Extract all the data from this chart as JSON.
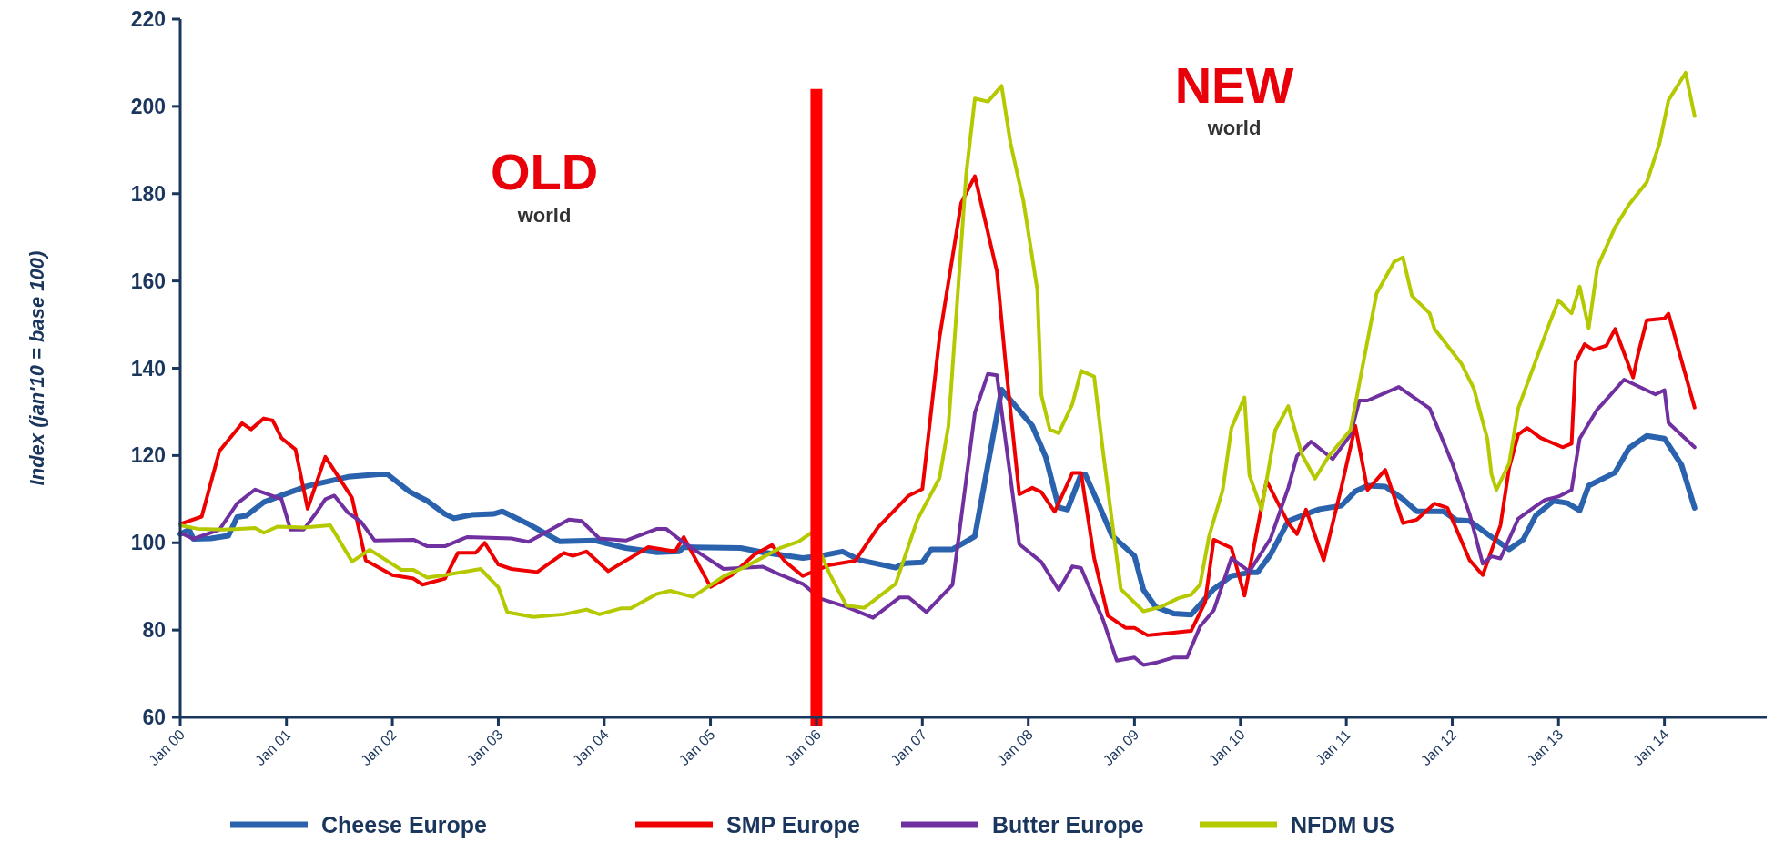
{
  "chart_data": {
    "type": "line",
    "ylabel": "Index (jan'10 = base 100)",
    "xlim": [
      "2000-01-01",
      "2015-01-01"
    ],
    "ylim": [
      60,
      220
    ],
    "yticks": [
      60,
      80,
      100,
      120,
      140,
      160,
      180,
      200,
      220
    ],
    "xticks": [
      {
        "value": "2000-01-01",
        "label": "Jan 00"
      },
      {
        "value": "2001-01-01",
        "label": "Jan 01"
      },
      {
        "value": "2002-01-01",
        "label": "Jan 02"
      },
      {
        "value": "2003-01-01",
        "label": "Jan 03"
      },
      {
        "value": "2004-01-01",
        "label": "Jan 04"
      },
      {
        "value": "2005-01-01",
        "label": "Jan 05"
      },
      {
        "value": "2006-01-01",
        "label": "Jan 06"
      },
      {
        "value": "2007-01-01",
        "label": "Jan 07"
      },
      {
        "value": "2008-01-01",
        "label": "Jan 08"
      },
      {
        "value": "2009-01-01",
        "label": "Jan 09"
      },
      {
        "value": "2010-01-01",
        "label": "Jan 10"
      },
      {
        "value": "2011-01-01",
        "label": "Jan 11"
      },
      {
        "value": "2012-01-01",
        "label": "Jan 12"
      },
      {
        "value": "2013-01-01",
        "label": "Jan 13"
      },
      {
        "value": "2014-01-01",
        "label": "Jan 14"
      }
    ],
    "grid": false,
    "legend": "bottom",
    "marker": "none",
    "line_style": "solid",
    "ref_lines": [
      {
        "axis": "x",
        "value": "2006-01-01",
        "color": "#ff0000"
      }
    ],
    "annotations": [
      "OLD",
      "world",
      "NEW",
      "world"
    ],
    "series": [
      {
        "name": "Cheese Europe",
        "color": "#2a62ae",
        "x": [
          "2000-01-01",
          "2000-02-01",
          "2000-02-15",
          "2000-04-15",
          "2000-06-15",
          "2000-07-15",
          "2000-08-15",
          "2000-10-15",
          "2001-01-01",
          "2001-03-15",
          "2001-08-01",
          "2001-11-15",
          "2001-12-15",
          "2002-03-01",
          "2002-05-01",
          "2002-07-01",
          "2002-08-01",
          "2002-10-01",
          "2002-12-15",
          "2003-01-15",
          "2003-04-15",
          "2003-08-01",
          "2003-12-01",
          "2004-03-15",
          "2004-07-01",
          "2004-09-15",
          "2004-10-01",
          "2005-04-15",
          "2005-07-01",
          "2005-11-15",
          "2006-01-15",
          "2006-04-01",
          "2006-06-01",
          "2006-10-01",
          "2006-11-01",
          "2007-01-01",
          "2007-02-01",
          "2007-04-15",
          "2007-06-01",
          "2007-07-01",
          "2007-10-01",
          "2008-01-15",
          "2008-03-01",
          "2008-04-15",
          "2008-05-15",
          "2008-07-01",
          "2008-07-15",
          "2008-09-01",
          "2008-10-15",
          "2009-01-01",
          "2009-02-01",
          "2009-03-15",
          "2009-05-15",
          "2009-07-15",
          "2009-10-01",
          "2009-12-01",
          "2010-02-01",
          "2010-03-01",
          "2010-04-15",
          "2010-06-15",
          "2010-09-01",
          "2010-10-01",
          "2010-12-15",
          "2011-02-01",
          "2011-03-15",
          "2011-05-15",
          "2011-07-15",
          "2011-09-01",
          "2011-12-01",
          "2012-01-15",
          "2012-03-01",
          "2012-05-01",
          "2012-07-15",
          "2012-09-01",
          "2012-10-15",
          "2012-12-15",
          "2013-02-01",
          "2013-03-15",
          "2013-04-15",
          "2013-07-15",
          "2013-09-01",
          "2013-11-01",
          "2014-01-01",
          "2014-03-01",
          "2014-04-15"
        ],
        "values": [
          102,
          103,
          100.9,
          101,
          101.6,
          105.9,
          106.2,
          109.3,
          111.3,
          113,
          115.1,
          115.7,
          115.7,
          111.7,
          109.6,
          106.6,
          105.6,
          106.4,
          106.6,
          107.2,
          104.3,
          100.3,
          100.5,
          98.8,
          97.8,
          98,
          99,
          98.8,
          97.8,
          96.5,
          97,
          98,
          96,
          94.3,
          95.3,
          95.5,
          98.5,
          98.5,
          100.3,
          101.5,
          135.1,
          126.8,
          119.7,
          108.1,
          107.6,
          115.7,
          115.7,
          108.6,
          101.7,
          97,
          89.2,
          85.3,
          83.8,
          83.5,
          89.4,
          92.4,
          93.2,
          93.2,
          97.3,
          105,
          107,
          107.7,
          108.5,
          111.8,
          113.1,
          112.9,
          110,
          107.2,
          107.2,
          105.2,
          105,
          102,
          98.5,
          100.7,
          106.3,
          109.6,
          109.1,
          107.4,
          113.1,
          116.1,
          121.7,
          124.5,
          123.9,
          117.8,
          108
        ]
      },
      {
        "name": "SMP Europe",
        "color": "#ee0000",
        "x": [
          "2000-01-01",
          "2000-03-15",
          "2000-05-15",
          "2000-08-01",
          "2000-09-01",
          "2000-10-15",
          "2000-11-15",
          "2000-12-15",
          "2001-02-01",
          "2001-03-15",
          "2001-05-15",
          "2001-08-15",
          "2001-10-01",
          "2002-01-01",
          "2002-03-15",
          "2002-04-15",
          "2002-07-01",
          "2002-08-15",
          "2002-10-15",
          "2002-11-15",
          "2003-01-01",
          "2003-02-15",
          "2003-05-15",
          "2003-08-15",
          "2003-09-15",
          "2003-11-01",
          "2004-01-15",
          "2004-06-01",
          "2004-09-01",
          "2004-10-01",
          "2005-01-01",
          "2005-03-15",
          "2005-06-01",
          "2005-08-01",
          "2005-09-15",
          "2005-11-15",
          "2006-02-15",
          "2006-05-15",
          "2006-08-01",
          "2006-11-15",
          "2007-01-01",
          "2007-03-01",
          "2007-05-15",
          "2007-07-01",
          "2007-09-15",
          "2007-10-15",
          "2007-12-01",
          "2008-01-15",
          "2008-02-15",
          "2008-04-01",
          "2008-06-01",
          "2008-07-01",
          "2008-08-15",
          "2008-10-01",
          "2008-12-01",
          "2009-01-01",
          "2009-02-15",
          "2009-07-15",
          "2009-09-01",
          "2009-10-01",
          "2009-12-01",
          "2010-01-15",
          "2010-04-01",
          "2010-06-15",
          "2010-07-15",
          "2010-08-15",
          "2010-10-15",
          "2010-12-15",
          "2011-02-01",
          "2011-03-15",
          "2011-05-15",
          "2011-07-15",
          "2011-09-01",
          "2011-11-01",
          "2011-12-15",
          "2012-03-01",
          "2012-04-15",
          "2012-06-15",
          "2012-07-15",
          "2012-08-15",
          "2012-09-15",
          "2012-11-01",
          "2013-01-15",
          "2013-02-15",
          "2013-03-01",
          "2013-04-01",
          "2013-05-01",
          "2013-06-15",
          "2013-07-15",
          "2013-09-15",
          "2013-10-01",
          "2013-11-01",
          "2014-01-01",
          "2014-01-15",
          "2014-04-15"
        ],
        "values": [
          104.3,
          106,
          121,
          127.4,
          126,
          128.5,
          128,
          124,
          121.4,
          107.8,
          119.7,
          110.3,
          96,
          92.6,
          91.8,
          90.4,
          91.8,
          97.7,
          97.7,
          100,
          95,
          94,
          93.3,
          97.7,
          97,
          98,
          93.5,
          99,
          98,
          101.3,
          89.9,
          92.6,
          97.3,
          99.5,
          95.7,
          92.4,
          94.9,
          95.9,
          103.5,
          110.8,
          112.3,
          147,
          177.9,
          184,
          162.2,
          141,
          111.1,
          112.6,
          111.6,
          107.1,
          116,
          116,
          96.5,
          83.3,
          80.5,
          80.5,
          78.8,
          79.8,
          86.3,
          100.7,
          98.8,
          87.9,
          114.2,
          104.5,
          102,
          107.6,
          96,
          112.7,
          126.8,
          112.1,
          116.7,
          104.5,
          105.3,
          109,
          108,
          96,
          92.6,
          104,
          117.2,
          124.8,
          126.3,
          124,
          121.9,
          122.7,
          141.4,
          145.5,
          144.2,
          145.2,
          149,
          137.9,
          142.9,
          151,
          151.4,
          152.5,
          131
        ]
      },
      {
        "name": "Butter Europe",
        "color": "#7030a0",
        "x": [
          "2000-01-01",
          "2000-02-15",
          "2000-05-15",
          "2000-07-15",
          "2000-09-15",
          "2000-12-15",
          "2001-01-15",
          "2001-03-01",
          "2001-04-15",
          "2001-05-15",
          "2001-06-15",
          "2001-08-01",
          "2001-09-15",
          "2001-11-01",
          "2002-03-15",
          "2002-05-01",
          "2002-07-01",
          "2002-09-15",
          "2003-02-15",
          "2003-04-15",
          "2003-07-01",
          "2003-09-01",
          "2003-10-15",
          "2003-12-15",
          "2004-03-15",
          "2004-07-01",
          "2004-08-01",
          "2004-10-01",
          "2005-02-15",
          "2005-07-01",
          "2005-09-01",
          "2005-11-15",
          "2006-01-15",
          "2006-04-15",
          "2006-07-15",
          "2006-10-15",
          "2006-11-15",
          "2007-01-15",
          "2007-04-15",
          "2007-07-01",
          "2007-08-15",
          "2007-09-15",
          "2007-12-01",
          "2008-02-15",
          "2008-04-15",
          "2008-06-01",
          "2008-07-01",
          "2008-09-15",
          "2008-11-01",
          "2009-01-01",
          "2009-02-01",
          "2009-03-15",
          "2009-05-15",
          "2009-07-01",
          "2009-08-15",
          "2009-10-01",
          "2009-12-01",
          "2010-02-01",
          "2010-04-15",
          "2010-06-15",
          "2010-07-15",
          "2010-09-01",
          "2010-11-15",
          "2011-01-15",
          "2011-02-15",
          "2011-03-15",
          "2011-07-01",
          "2011-10-15",
          "2012-01-01",
          "2012-03-01",
          "2012-04-15",
          "2012-05-15",
          "2012-06-15",
          "2012-08-15",
          "2012-10-15",
          "2012-11-15",
          "2013-01-01",
          "2013-02-15",
          "2013-03-15",
          "2013-05-15",
          "2013-06-01",
          "2013-08-15",
          "2013-12-01",
          "2014-01-01",
          "2014-01-15",
          "2014-04-15"
        ],
        "values": [
          102.3,
          100.9,
          103,
          109,
          112.2,
          110,
          103,
          103,
          107,
          110,
          110.8,
          106.9,
          104.8,
          100.5,
          100.7,
          99.2,
          99.2,
          101.3,
          101,
          100.2,
          103,
          105.3,
          105,
          101,
          100.5,
          103.2,
          103.2,
          100,
          94,
          94.5,
          92.6,
          90.6,
          87.2,
          85.3,
          82.8,
          87.5,
          87.5,
          84.1,
          90.4,
          129.8,
          138.7,
          138.4,
          99.7,
          95.6,
          89.2,
          94.6,
          94.2,
          82.3,
          73,
          73.7,
          72,
          72.5,
          73.7,
          73.7,
          80.8,
          84.5,
          96.5,
          93.4,
          101,
          112.6,
          119.9,
          123.2,
          119.2,
          124.7,
          132.6,
          132.6,
          135.7,
          130.8,
          118.2,
          106.5,
          95.2,
          96.9,
          96.4,
          105.5,
          108.4,
          109.8,
          110.6,
          112.1,
          123.9,
          130.6,
          131.8,
          137.4,
          134,
          135,
          127.5,
          121.9
        ]
      },
      {
        "name": "NFDM US",
        "color": "#b5c900",
        "x": [
          "2000-01-01",
          "2000-03-01",
          "2000-06-01",
          "2000-09-15",
          "2000-10-15",
          "2000-12-01",
          "2001-03-01",
          "2001-06-01",
          "2001-08-15",
          "2001-10-15",
          "2002-02-01",
          "2002-03-15",
          "2002-05-01",
          "2002-07-01",
          "2002-11-01",
          "2003-01-01",
          "2003-02-01",
          "2003-05-01",
          "2003-08-15",
          "2003-11-01",
          "2003-12-15",
          "2004-03-01",
          "2004-04-01",
          "2004-07-01",
          "2004-08-15",
          "2004-11-01",
          "2005-02-15",
          "2005-05-01",
          "2005-09-01",
          "2005-11-01",
          "2005-12-15",
          "2006-02-15",
          "2006-03-15",
          "2006-04-15",
          "2006-06-15",
          "2006-10-01",
          "2006-12-15",
          "2007-03-01",
          "2007-04-01",
          "2007-06-01",
          "2007-07-01",
          "2007-08-15",
          "2007-10-01",
          "2007-11-01",
          "2007-12-15",
          "2008-02-01",
          "2008-02-15",
          "2008-03-15",
          "2008-04-15",
          "2008-06-01",
          "2008-07-01",
          "2008-08-15",
          "2008-09-15",
          "2008-11-15",
          "2009-02-01",
          "2009-04-01",
          "2009-06-01",
          "2009-07-15",
          "2009-08-15",
          "2009-09-15",
          "2009-11-01",
          "2009-12-01",
          "2010-01-15",
          "2010-02-01",
          "2010-03-15",
          "2010-05-01",
          "2010-06-15",
          "2010-08-01",
          "2010-09-15",
          "2010-11-01",
          "2011-01-15",
          "2011-04-15",
          "2011-06-15",
          "2011-07-15",
          "2011-08-15",
          "2011-10-15",
          "2011-11-01",
          "2012-02-01",
          "2012-03-15",
          "2012-05-01",
          "2012-05-15",
          "2012-06-01",
          "2012-07-15",
          "2012-08-15",
          "2012-12-01",
          "2013-01-01",
          "2013-02-15",
          "2013-03-15",
          "2013-04-15",
          "2013-05-15",
          "2013-07-15",
          "2013-09-01",
          "2013-11-01",
          "2013-12-15",
          "2014-01-15",
          "2014-03-15",
          "2014-04-15"
        ],
        "values": [
          104,
          103.2,
          103,
          103.4,
          102.3,
          103.7,
          103.5,
          104,
          95.7,
          98.4,
          93.8,
          93.8,
          92,
          92.6,
          94,
          89.8,
          84.1,
          83,
          83.6,
          84.7,
          83.6,
          85,
          85,
          88.3,
          89,
          87.6,
          92.3,
          94.5,
          98.9,
          100.3,
          102.3,
          93,
          89.4,
          85.6,
          85.1,
          90.6,
          105.3,
          114.8,
          126.8,
          184.4,
          201.8,
          201.1,
          204.7,
          191.5,
          178.4,
          158.1,
          133.9,
          126,
          125.1,
          131.8,
          139.4,
          138.1,
          120.7,
          89.4,
          84.3,
          85.3,
          87.3,
          88.1,
          90.4,
          101.5,
          112.1,
          126.3,
          133.3,
          115.5,
          107.6,
          125.8,
          131.3,
          120.2,
          114.7,
          119.8,
          125.8,
          157.1,
          164.4,
          165.4,
          156.6,
          152.6,
          149,
          141.1,
          135.4,
          123.8,
          115.7,
          112.1,
          118.2,
          130.8,
          150.3,
          155.6,
          152.6,
          158.7,
          149.2,
          163.2,
          172.3,
          177.5,
          182.6,
          191.5,
          201.4,
          207.7,
          197.8
        ]
      }
    ]
  }
}
